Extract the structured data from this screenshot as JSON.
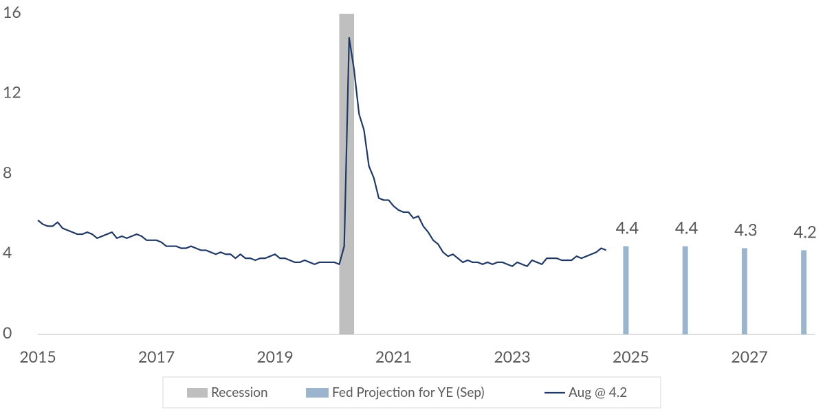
{
  "chart_data": {
    "type": "line",
    "recession": {
      "name": "Recession",
      "color": "#bfbfbf",
      "start": "2020-02",
      "end": "2020-04"
    },
    "series": [
      {
        "name": "Fed Projection for YE (Sep)",
        "type": "bar",
        "color": "#9bb5cf",
        "x": [
          "2024-12",
          "2025-12",
          "2026-12",
          "2027-12"
        ],
        "values": [
          4.4,
          4.4,
          4.3,
          4.2
        ]
      },
      {
        "name": "Aug @ 4.2",
        "type": "line",
        "color": "#1f3864",
        "x": [
          "2015-01",
          "2015-02",
          "2015-03",
          "2015-04",
          "2015-05",
          "2015-06",
          "2015-07",
          "2015-08",
          "2015-09",
          "2015-10",
          "2015-11",
          "2015-12",
          "2016-01",
          "2016-02",
          "2016-03",
          "2016-04",
          "2016-05",
          "2016-06",
          "2016-07",
          "2016-08",
          "2016-09",
          "2016-10",
          "2016-11",
          "2016-12",
          "2017-01",
          "2017-02",
          "2017-03",
          "2017-04",
          "2017-05",
          "2017-06",
          "2017-07",
          "2017-08",
          "2017-09",
          "2017-10",
          "2017-11",
          "2017-12",
          "2018-01",
          "2018-02",
          "2018-03",
          "2018-04",
          "2018-05",
          "2018-06",
          "2018-07",
          "2018-08",
          "2018-09",
          "2018-10",
          "2018-11",
          "2018-12",
          "2019-01",
          "2019-02",
          "2019-03",
          "2019-04",
          "2019-05",
          "2019-06",
          "2019-07",
          "2019-08",
          "2019-09",
          "2019-10",
          "2019-11",
          "2019-12",
          "2020-01",
          "2020-02",
          "2020-03",
          "2020-04",
          "2020-05",
          "2020-06",
          "2020-07",
          "2020-08",
          "2020-09",
          "2020-10",
          "2020-11",
          "2020-12",
          "2021-01",
          "2021-02",
          "2021-03",
          "2021-04",
          "2021-05",
          "2021-06",
          "2021-07",
          "2021-08",
          "2021-09",
          "2021-10",
          "2021-11",
          "2021-12",
          "2022-01",
          "2022-02",
          "2022-03",
          "2022-04",
          "2022-05",
          "2022-06",
          "2022-07",
          "2022-08",
          "2022-09",
          "2022-10",
          "2022-11",
          "2022-12",
          "2023-01",
          "2023-02",
          "2023-03",
          "2023-04",
          "2023-05",
          "2023-06",
          "2023-07",
          "2023-08",
          "2023-09",
          "2023-10",
          "2023-11",
          "2023-12",
          "2024-01",
          "2024-02",
          "2024-03",
          "2024-04",
          "2024-05",
          "2024-06",
          "2024-07",
          "2024-08"
        ],
        "values": [
          5.7,
          5.5,
          5.4,
          5.4,
          5.6,
          5.3,
          5.2,
          5.1,
          5.0,
          5.0,
          5.1,
          5.0,
          4.8,
          4.9,
          5.0,
          5.1,
          4.8,
          4.9,
          4.8,
          4.9,
          5.0,
          4.9,
          4.7,
          4.7,
          4.7,
          4.6,
          4.4,
          4.4,
          4.4,
          4.3,
          4.3,
          4.4,
          4.3,
          4.2,
          4.2,
          4.1,
          4.0,
          4.1,
          4.0,
          4.0,
          3.8,
          4.0,
          3.8,
          3.8,
          3.7,
          3.8,
          3.8,
          3.9,
          4.0,
          3.8,
          3.8,
          3.7,
          3.6,
          3.6,
          3.7,
          3.6,
          3.5,
          3.6,
          3.6,
          3.6,
          3.6,
          3.5,
          4.4,
          14.8,
          13.2,
          11.0,
          10.2,
          8.4,
          7.8,
          6.8,
          6.7,
          6.7,
          6.4,
          6.2,
          6.1,
          6.1,
          5.8,
          5.9,
          5.4,
          5.1,
          4.7,
          4.5,
          4.1,
          3.9,
          4.0,
          3.8,
          3.6,
          3.7,
          3.6,
          3.6,
          3.5,
          3.6,
          3.5,
          3.6,
          3.6,
          3.5,
          3.4,
          3.6,
          3.5,
          3.4,
          3.7,
          3.6,
          3.5,
          3.8,
          3.8,
          3.8,
          3.7,
          3.7,
          3.7,
          3.9,
          3.8,
          3.9,
          4.0,
          4.1,
          4.3,
          4.2
        ]
      }
    ],
    "xlim": [
      2015,
      2028.1
    ],
    "xticks": [
      2015,
      2017,
      2019,
      2021,
      2023,
      2025,
      2027
    ],
    "ylim": [
      0,
      16
    ],
    "yticks": [
      0,
      4,
      8,
      12,
      16
    ],
    "grid": false
  }
}
